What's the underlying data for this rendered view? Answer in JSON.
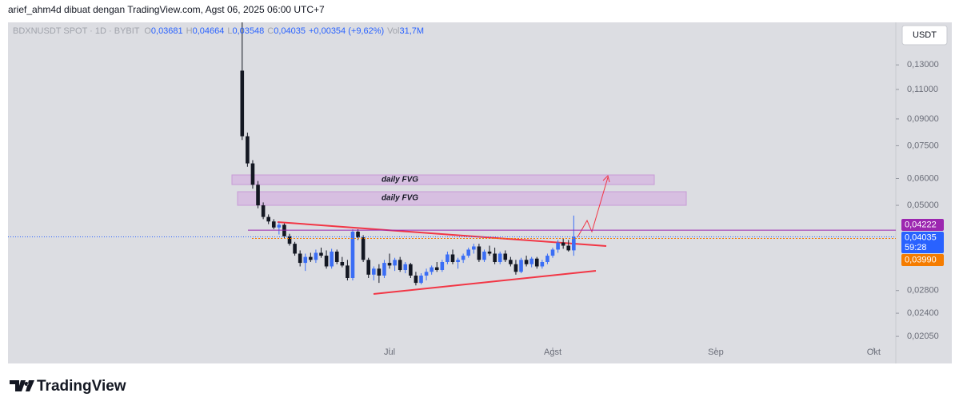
{
  "header": {
    "credit": "arief_ahm4d dibuat dengan TradingView.com, Agst 06, 2025 06:00 UTC+7"
  },
  "legend": {
    "symbol": "BDXNUSDT SPOT · 1D · BYBIT",
    "fields": [
      {
        "label": "O",
        "value": "0,03681"
      },
      {
        "label": "H",
        "value": "0,04664"
      },
      {
        "label": "L",
        "value": "0,03548"
      },
      {
        "label": "C",
        "value": "0,04035"
      }
    ],
    "change": "+0,00354 (+9,62%)",
    "volume": {
      "label": "Vol",
      "value": "31,7M"
    }
  },
  "currency_button": "USDT",
  "zones": [
    {
      "label": "daily FVG"
    },
    {
      "label": "daily FVG"
    }
  ],
  "footer": {
    "brand": "TradingView"
  },
  "chart_data": {
    "type": "candlestick",
    "log_scale": true,
    "up_color": "#3b6ef5",
    "down_color": "#131722",
    "ylim": [
      0.01705,
      0.1736
    ],
    "xlim": [
      -44.5,
      124.2
    ],
    "yticks": [
      {
        "value": 0.13,
        "label": "0,13000"
      },
      {
        "value": 0.11,
        "label": "0,11000"
      },
      {
        "value": 0.09,
        "label": "0,09000"
      },
      {
        "value": 0.075,
        "label": "0,07500"
      },
      {
        "value": 0.06,
        "label": "0,06000"
      },
      {
        "value": 0.05,
        "label": "0,05000"
      },
      {
        "value": 0.028,
        "label": "0,02800"
      },
      {
        "value": 0.024,
        "label": "0,02400"
      },
      {
        "value": 0.0205,
        "label": "0,02050"
      }
    ],
    "xticks": [
      {
        "value": 28,
        "label": "Jul"
      },
      {
        "value": 59,
        "label": "Agst"
      },
      {
        "value": 90,
        "label": "Sep"
      },
      {
        "value": 120,
        "label": "Okt"
      }
    ],
    "price_lines": [
      {
        "value": 0.04222,
        "label": "0,04222",
        "color": "#9c27b0"
      },
      {
        "value": 0.04035,
        "label": "0,04035",
        "sub": "59:28",
        "color": "#2962ff"
      },
      {
        "value": 0.0399,
        "label": "0,03990",
        "color": "#f57c00"
      }
    ],
    "candles": [
      [
        0.125,
        0.18,
        0.078,
        0.08
      ],
      [
        0.08,
        0.082,
        0.065,
        0.0665
      ],
      [
        0.0665,
        0.068,
        0.056,
        0.0575
      ],
      [
        0.0575,
        0.059,
        0.049,
        0.05
      ],
      [
        0.05,
        0.051,
        0.0455,
        0.0462
      ],
      [
        0.0462,
        0.047,
        0.044,
        0.0448
      ],
      [
        0.0448,
        0.0455,
        0.0425,
        0.043
      ],
      [
        0.043,
        0.0445,
        0.041,
        0.0438
      ],
      [
        0.0438,
        0.0442,
        0.04,
        0.0405
      ],
      [
        0.0405,
        0.0412,
        0.038,
        0.0385
      ],
      [
        0.0385,
        0.039,
        0.0355,
        0.036
      ],
      [
        0.036,
        0.0368,
        0.033,
        0.0338
      ],
      [
        0.0338,
        0.036,
        0.032,
        0.0352
      ],
      [
        0.0352,
        0.0362,
        0.034,
        0.0345
      ],
      [
        0.0345,
        0.037,
        0.0338,
        0.0362
      ],
      [
        0.0362,
        0.0375,
        0.035,
        0.0355
      ],
      [
        0.0355,
        0.0368,
        0.0325,
        0.033
      ],
      [
        0.033,
        0.0372,
        0.0325,
        0.0365
      ],
      [
        0.0365,
        0.037,
        0.0335,
        0.034
      ],
      [
        0.034,
        0.0352,
        0.0328,
        0.0332
      ],
      [
        0.0332,
        0.0345,
        0.03,
        0.0305
      ],
      [
        0.0305,
        0.0425,
        0.03,
        0.0418
      ],
      [
        0.0418,
        0.0425,
        0.0395,
        0.0402
      ],
      [
        0.0402,
        0.0408,
        0.034,
        0.0345
      ],
      [
        0.0345,
        0.035,
        0.0305,
        0.0312
      ],
      [
        0.0312,
        0.033,
        0.03,
        0.0325
      ],
      [
        0.0325,
        0.0335,
        0.0295,
        0.031
      ],
      [
        0.031,
        0.0345,
        0.0305,
        0.0338
      ],
      [
        0.0338,
        0.036,
        0.0325,
        0.0332
      ],
      [
        0.0332,
        0.035,
        0.032,
        0.0345
      ],
      [
        0.0345,
        0.0352,
        0.0318,
        0.0322
      ],
      [
        0.0322,
        0.034,
        0.0315,
        0.0335
      ],
      [
        0.0335,
        0.0338,
        0.0305,
        0.031
      ],
      [
        0.031,
        0.0318,
        0.029,
        0.0295
      ],
      [
        0.0295,
        0.0315,
        0.0292,
        0.031
      ],
      [
        0.031,
        0.0325,
        0.03,
        0.0318
      ],
      [
        0.0318,
        0.0332,
        0.0312,
        0.0328
      ],
      [
        0.0328,
        0.034,
        0.0318,
        0.0322
      ],
      [
        0.0322,
        0.0345,
        0.0318,
        0.034
      ],
      [
        0.034,
        0.0365,
        0.0335,
        0.0358
      ],
      [
        0.0358,
        0.037,
        0.0335,
        0.034
      ],
      [
        0.034,
        0.035,
        0.0325,
        0.0345
      ],
      [
        0.0345,
        0.036,
        0.0338,
        0.0355
      ],
      [
        0.0355,
        0.0375,
        0.035,
        0.037
      ],
      [
        0.037,
        0.0385,
        0.036,
        0.0378
      ],
      [
        0.0378,
        0.0385,
        0.034,
        0.0345
      ],
      [
        0.0345,
        0.037,
        0.034,
        0.0365
      ],
      [
        0.0365,
        0.038,
        0.0355,
        0.036
      ],
      [
        0.036,
        0.0375,
        0.0335,
        0.034
      ],
      [
        0.034,
        0.0365,
        0.0335,
        0.036
      ],
      [
        0.036,
        0.0368,
        0.034,
        0.0345
      ],
      [
        0.0345,
        0.0352,
        0.033,
        0.0335
      ],
      [
        0.0335,
        0.0345,
        0.0312,
        0.0318
      ],
      [
        0.0318,
        0.035,
        0.0315,
        0.0345
      ],
      [
        0.0345,
        0.0355,
        0.033,
        0.0335
      ],
      [
        0.0335,
        0.0352,
        0.0328,
        0.0348
      ],
      [
        0.0348,
        0.0352,
        0.0325,
        0.033
      ],
      [
        0.033,
        0.0345,
        0.0325,
        0.034
      ],
      [
        0.034,
        0.036,
        0.0335,
        0.0355
      ],
      [
        0.0355,
        0.0375,
        0.035,
        0.037
      ],
      [
        0.037,
        0.0395,
        0.0362,
        0.0388
      ],
      [
        0.0388,
        0.04,
        0.0372,
        0.038
      ],
      [
        0.038,
        0.0395,
        0.0365,
        0.03681
      ],
      [
        0.03681,
        0.04664,
        0.03548,
        0.04035
      ]
    ]
  }
}
